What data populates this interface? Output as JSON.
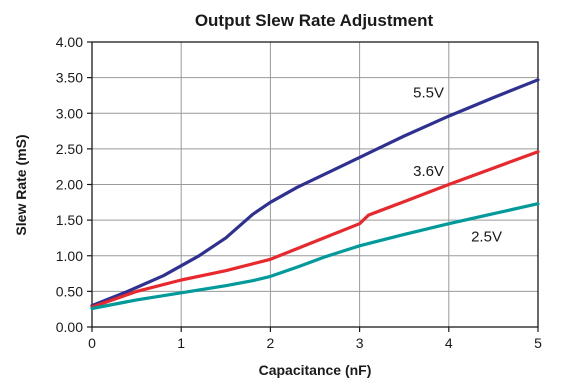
{
  "chart_data": {
    "type": "line",
    "title": "Output Slew Rate Adjustment",
    "xlabel": "Capacitance (nF)",
    "ylabel": "Slew Rate (mS)",
    "xlim": [
      0,
      5
    ],
    "ylim": [
      0,
      4
    ],
    "x_ticks": [
      0,
      1,
      2,
      3,
      4,
      5
    ],
    "y_ticks": [
      0,
      0.5,
      1,
      1.5,
      2,
      2.5,
      3,
      3.5,
      4
    ],
    "x_tick_labels": [
      "0",
      "1",
      "2",
      "3",
      "4",
      "5"
    ],
    "y_tick_labels": [
      "0.00",
      "0.50",
      "1.00",
      "1.50",
      "2.00",
      "2.50",
      "3.00",
      "3.50",
      "4.00"
    ],
    "grid": true,
    "legend": "none",
    "series": [
      {
        "name": "5.5V",
        "color": "#2e3192",
        "label_at": [
          3.6,
          3.22
        ],
        "points": [
          [
            0,
            0.3
          ],
          [
            0.4,
            0.5
          ],
          [
            0.8,
            0.72
          ],
          [
            1.2,
            1.0
          ],
          [
            1.5,
            1.25
          ],
          [
            1.8,
            1.58
          ],
          [
            2.0,
            1.75
          ],
          [
            2.3,
            1.96
          ],
          [
            2.7,
            2.2
          ],
          [
            3.0,
            2.38
          ],
          [
            3.5,
            2.68
          ],
          [
            4.0,
            2.96
          ],
          [
            4.5,
            3.22
          ],
          [
            5.0,
            3.47
          ]
        ]
      },
      {
        "name": "3.6V",
        "color": "#e8282c",
        "label_at": [
          3.6,
          2.12
        ],
        "points": [
          [
            0,
            0.28
          ],
          [
            0.5,
            0.5
          ],
          [
            1.0,
            0.66
          ],
          [
            1.5,
            0.79
          ],
          [
            2.0,
            0.95
          ],
          [
            2.5,
            1.2
          ],
          [
            3.0,
            1.45
          ],
          [
            3.1,
            1.57
          ],
          [
            3.5,
            1.76
          ],
          [
            4.0,
            2.0
          ],
          [
            4.5,
            2.23
          ],
          [
            5.0,
            2.46
          ]
        ]
      },
      {
        "name": "2.5V",
        "color": "#009a9a",
        "label_at": [
          4.25,
          1.2
        ],
        "points": [
          [
            0,
            0.26
          ],
          [
            0.5,
            0.38
          ],
          [
            1.0,
            0.48
          ],
          [
            1.5,
            0.58
          ],
          [
            1.8,
            0.65
          ],
          [
            2.0,
            0.71
          ],
          [
            2.3,
            0.84
          ],
          [
            2.6,
            0.98
          ],
          [
            2.9,
            1.1
          ],
          [
            3.0,
            1.14
          ],
          [
            3.5,
            1.3
          ],
          [
            4.0,
            1.45
          ],
          [
            4.5,
            1.59
          ],
          [
            5.0,
            1.73
          ]
        ]
      }
    ]
  }
}
